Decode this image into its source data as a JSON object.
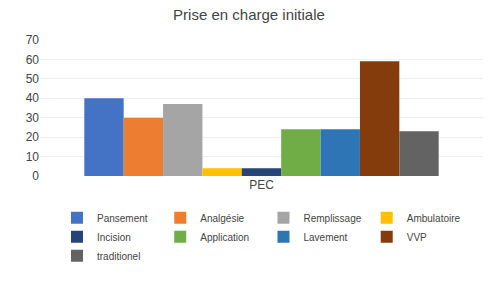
{
  "chart_data": {
    "type": "bar",
    "title": "Prise en charge initiale",
    "categories": [
      "PEC"
    ],
    "series": [
      {
        "name": "Pansement",
        "color": "#4472C4",
        "values": [
          40
        ]
      },
      {
        "name": "Analgésie",
        "color": "#ED7D31",
        "values": [
          30
        ]
      },
      {
        "name": "Remplissage",
        "color": "#A5A5A5",
        "values": [
          37
        ]
      },
      {
        "name": "Ambulatoire",
        "color": "#FFC000",
        "values": [
          4
        ]
      },
      {
        "name": "Incision",
        "color": "#264478",
        "values": [
          4
        ]
      },
      {
        "name": "Application",
        "color": "#70AD47",
        "values": [
          24
        ]
      },
      {
        "name": "Lavement",
        "color": "#2E75B6",
        "values": [
          24
        ]
      },
      {
        "name": "VVP",
        "color": "#843C0C",
        "values": [
          59
        ]
      },
      {
        "name": "traditionel",
        "color": "#636363",
        "values": [
          23
        ]
      }
    ],
    "ylim": [
      0,
      70
    ],
    "yticks": [
      0,
      10,
      20,
      30,
      40,
      50,
      60,
      70
    ],
    "grid": true,
    "legend": "bottom"
  }
}
